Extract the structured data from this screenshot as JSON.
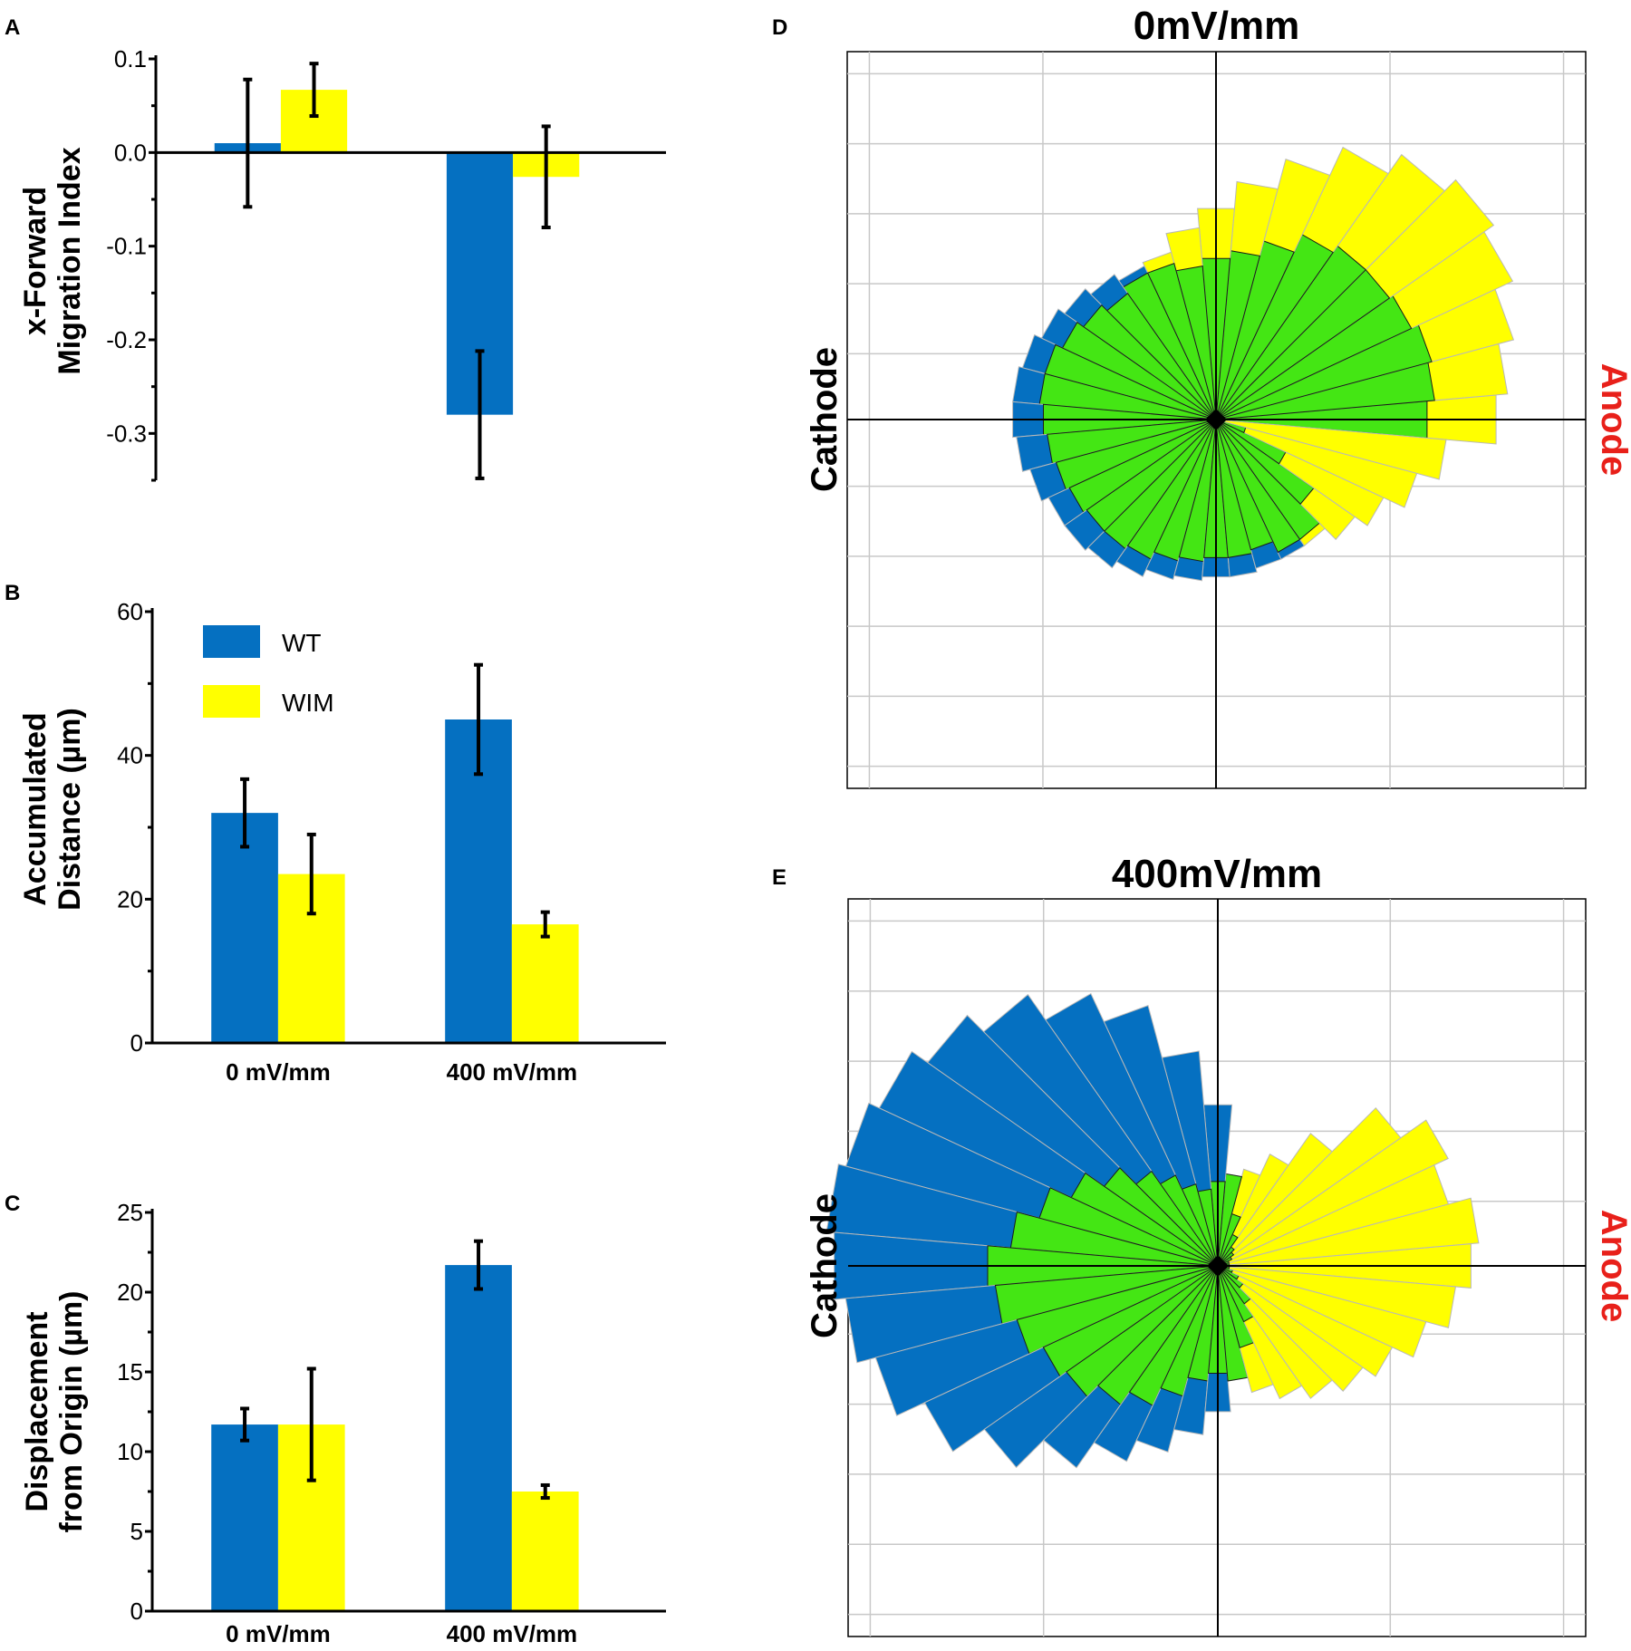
{
  "colors": {
    "wt": "#0570c1",
    "wim": "#ffff00",
    "overlap": "#44e614",
    "anode": "#e8201a",
    "grid": "#c8c8c8",
    "axis": "#000000"
  },
  "legend": [
    {
      "key": "wt",
      "label": "WT"
    },
    {
      "key": "wim",
      "label": "WIM"
    }
  ],
  "chart_data": [
    {
      "panel": "A",
      "type": "bar",
      "ylabel_lines": [
        "x-Forward",
        "Migration Index"
      ],
      "ylim": [
        -0.35,
        0.1
      ],
      "yticks": [
        0.1,
        0.0,
        -0.1,
        -0.2,
        -0.3
      ],
      "ytick_labels": [
        "0.1",
        "0.0",
        "-0.1",
        "-0.2",
        "-0.3"
      ],
      "categories": [
        "0 mV/mm",
        "400 mV/mm"
      ],
      "show_category_labels": false,
      "series": [
        {
          "name": "WT",
          "values": [
            0.01,
            -0.28
          ],
          "errors": [
            0.068,
            0.068
          ]
        },
        {
          "name": "WIM",
          "values": [
            0.067,
            -0.026
          ],
          "errors": [
            0.028,
            0.054
          ]
        }
      ]
    },
    {
      "panel": "B",
      "type": "bar",
      "ylabel_lines": [
        "Accumulated",
        "Distance (µm)"
      ],
      "ylim": [
        0,
        60
      ],
      "yticks": [
        0,
        20,
        40,
        60
      ],
      "ytick_labels": [
        "0",
        "20",
        "40",
        "60"
      ],
      "categories": [
        "0 mV/mm",
        "400 mV/mm"
      ],
      "show_category_labels": true,
      "series": [
        {
          "name": "WT",
          "values": [
            32,
            45
          ],
          "errors": [
            4.7,
            7.6
          ]
        },
        {
          "name": "WIM",
          "values": [
            23.5,
            16.5
          ],
          "errors": [
            5.5,
            1.7
          ]
        }
      ]
    },
    {
      "panel": "C",
      "type": "bar",
      "ylabel_lines": [
        "Displacement",
        "from Origin (µm)"
      ],
      "ylim": [
        0,
        25
      ],
      "yticks": [
        0,
        5,
        10,
        15,
        20,
        25
      ],
      "ytick_labels": [
        "0",
        "5",
        "10",
        "15",
        "20",
        "25"
      ],
      "categories": [
        "0 mV/mm",
        "400 mV/mm"
      ],
      "show_category_labels": true,
      "series": [
        {
          "name": "WT",
          "values": [
            11.7,
            21.7
          ],
          "errors": [
            1.0,
            1.5
          ]
        },
        {
          "name": "WIM",
          "values": [
            11.7,
            7.5
          ],
          "errors": [
            3.5,
            0.4
          ]
        }
      ]
    },
    {
      "panel": "D",
      "type": "rose",
      "title": "0mV/mm",
      "left_label": "Cathode",
      "right_label": "Anode",
      "rmax": 1.0,
      "angles_deg": [
        0,
        10,
        20,
        30,
        40,
        50,
        60,
        70,
        80,
        90,
        100,
        110,
        120,
        130,
        140,
        150,
        160,
        170,
        180,
        190,
        200,
        210,
        220,
        230,
        240,
        250,
        260,
        270,
        280,
        290,
        300,
        310,
        320,
        330,
        340,
        350
      ],
      "series": [
        {
          "name": "WT",
          "values": [
            0.55,
            0.57,
            0.58,
            0.56,
            0.55,
            0.55,
            0.53,
            0.48,
            0.44,
            0.42,
            0.4,
            0.42,
            0.44,
            0.46,
            0.48,
            0.5,
            0.52,
            0.53,
            0.53,
            0.52,
            0.5,
            0.48,
            0.48,
            0.47,
            0.45,
            0.43,
            0.42,
            0.41,
            0.41,
            0.4,
            0.4,
            0.38,
            0.31,
            0.2,
            0.08,
            0.02
          ]
        },
        {
          "name": "WIM",
          "values": [
            0.73,
            0.76,
            0.8,
            0.85,
            0.88,
            0.84,
            0.78,
            0.7,
            0.62,
            0.55,
            0.5,
            0.45,
            0.42,
            0.4,
            0.42,
            0.44,
            0.46,
            0.46,
            0.45,
            0.44,
            0.43,
            0.42,
            0.41,
            0.41,
            0.4,
            0.38,
            0.37,
            0.36,
            0.36,
            0.35,
            0.38,
            0.4,
            0.44,
            0.48,
            0.54,
            0.6
          ]
        }
      ]
    },
    {
      "panel": "E",
      "type": "rose",
      "title": "400mV/mm",
      "left_label": "Cathode",
      "right_label": "Anode",
      "rmax": 1.0,
      "angles_deg": [
        0,
        10,
        20,
        30,
        40,
        50,
        60,
        70,
        80,
        90,
        100,
        110,
        120,
        130,
        140,
        150,
        160,
        170,
        180,
        190,
        200,
        210,
        220,
        230,
        240,
        250,
        260,
        270,
        280,
        290,
        300,
        310,
        320,
        330,
        340,
        350
      ],
      "series": [
        {
          "name": "WT",
          "values": [
            0.03,
            0.03,
            0.03,
            0.04,
            0.05,
            0.06,
            0.09,
            0.14,
            0.24,
            0.42,
            0.56,
            0.7,
            0.78,
            0.86,
            0.92,
            0.97,
            1.0,
            1.02,
            1.0,
            0.97,
            0.92,
            0.84,
            0.74,
            0.64,
            0.56,
            0.5,
            0.44,
            0.38,
            0.3,
            0.22,
            0.16,
            0.12,
            0.08,
            0.06,
            0.04,
            0.03
          ]
        },
        {
          "name": "WIM",
          "values": [
            0.66,
            0.68,
            0.62,
            0.66,
            0.58,
            0.42,
            0.32,
            0.26,
            0.24,
            0.22,
            0.2,
            0.22,
            0.26,
            0.3,
            0.36,
            0.42,
            0.48,
            0.54,
            0.6,
            0.58,
            0.54,
            0.5,
            0.48,
            0.44,
            0.4,
            0.35,
            0.3,
            0.28,
            0.3,
            0.34,
            0.38,
            0.42,
            0.46,
            0.5,
            0.56,
            0.62
          ]
        }
      ]
    }
  ]
}
